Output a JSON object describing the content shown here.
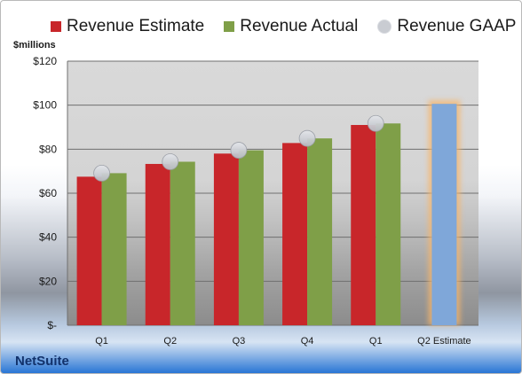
{
  "chart_data": {
    "type": "bar",
    "ylabel": "$millions",
    "ylim": [
      0,
      120
    ],
    "yticks": [
      0,
      20,
      40,
      60,
      80,
      100,
      120
    ],
    "ytick_labels": [
      "$-",
      "$20",
      "$40",
      "$60",
      "$80",
      "$100",
      "$120"
    ],
    "categories": [
      "Q1",
      "Q2",
      "Q3",
      "Q4",
      "Q1",
      "Q2 Estimate"
    ],
    "series": [
      {
        "name": "Revenue Estimate",
        "type": "bar",
        "color": "#c8262a",
        "values": [
          67.5,
          73.3,
          78.0,
          82.8,
          91.0,
          null
        ]
      },
      {
        "name": "Revenue Actual",
        "type": "bar",
        "color": "#7f9f48",
        "values": [
          69.1,
          74.3,
          79.5,
          84.9,
          91.7,
          null
        ]
      },
      {
        "name": "Revenue GAAP",
        "type": "scatter",
        "color": "#c9ccd2",
        "values": [
          69.1,
          74.3,
          79.5,
          84.9,
          91.7,
          null
        ]
      },
      {
        "name": "Q2 Estimate",
        "type": "bar",
        "color": "#7fa7d9",
        "highlight": "#f7b56a",
        "values": [
          null,
          null,
          null,
          null,
          null,
          100.6
        ]
      }
    ],
    "legend": "top",
    "grid": true
  },
  "brand": "NetSuite"
}
